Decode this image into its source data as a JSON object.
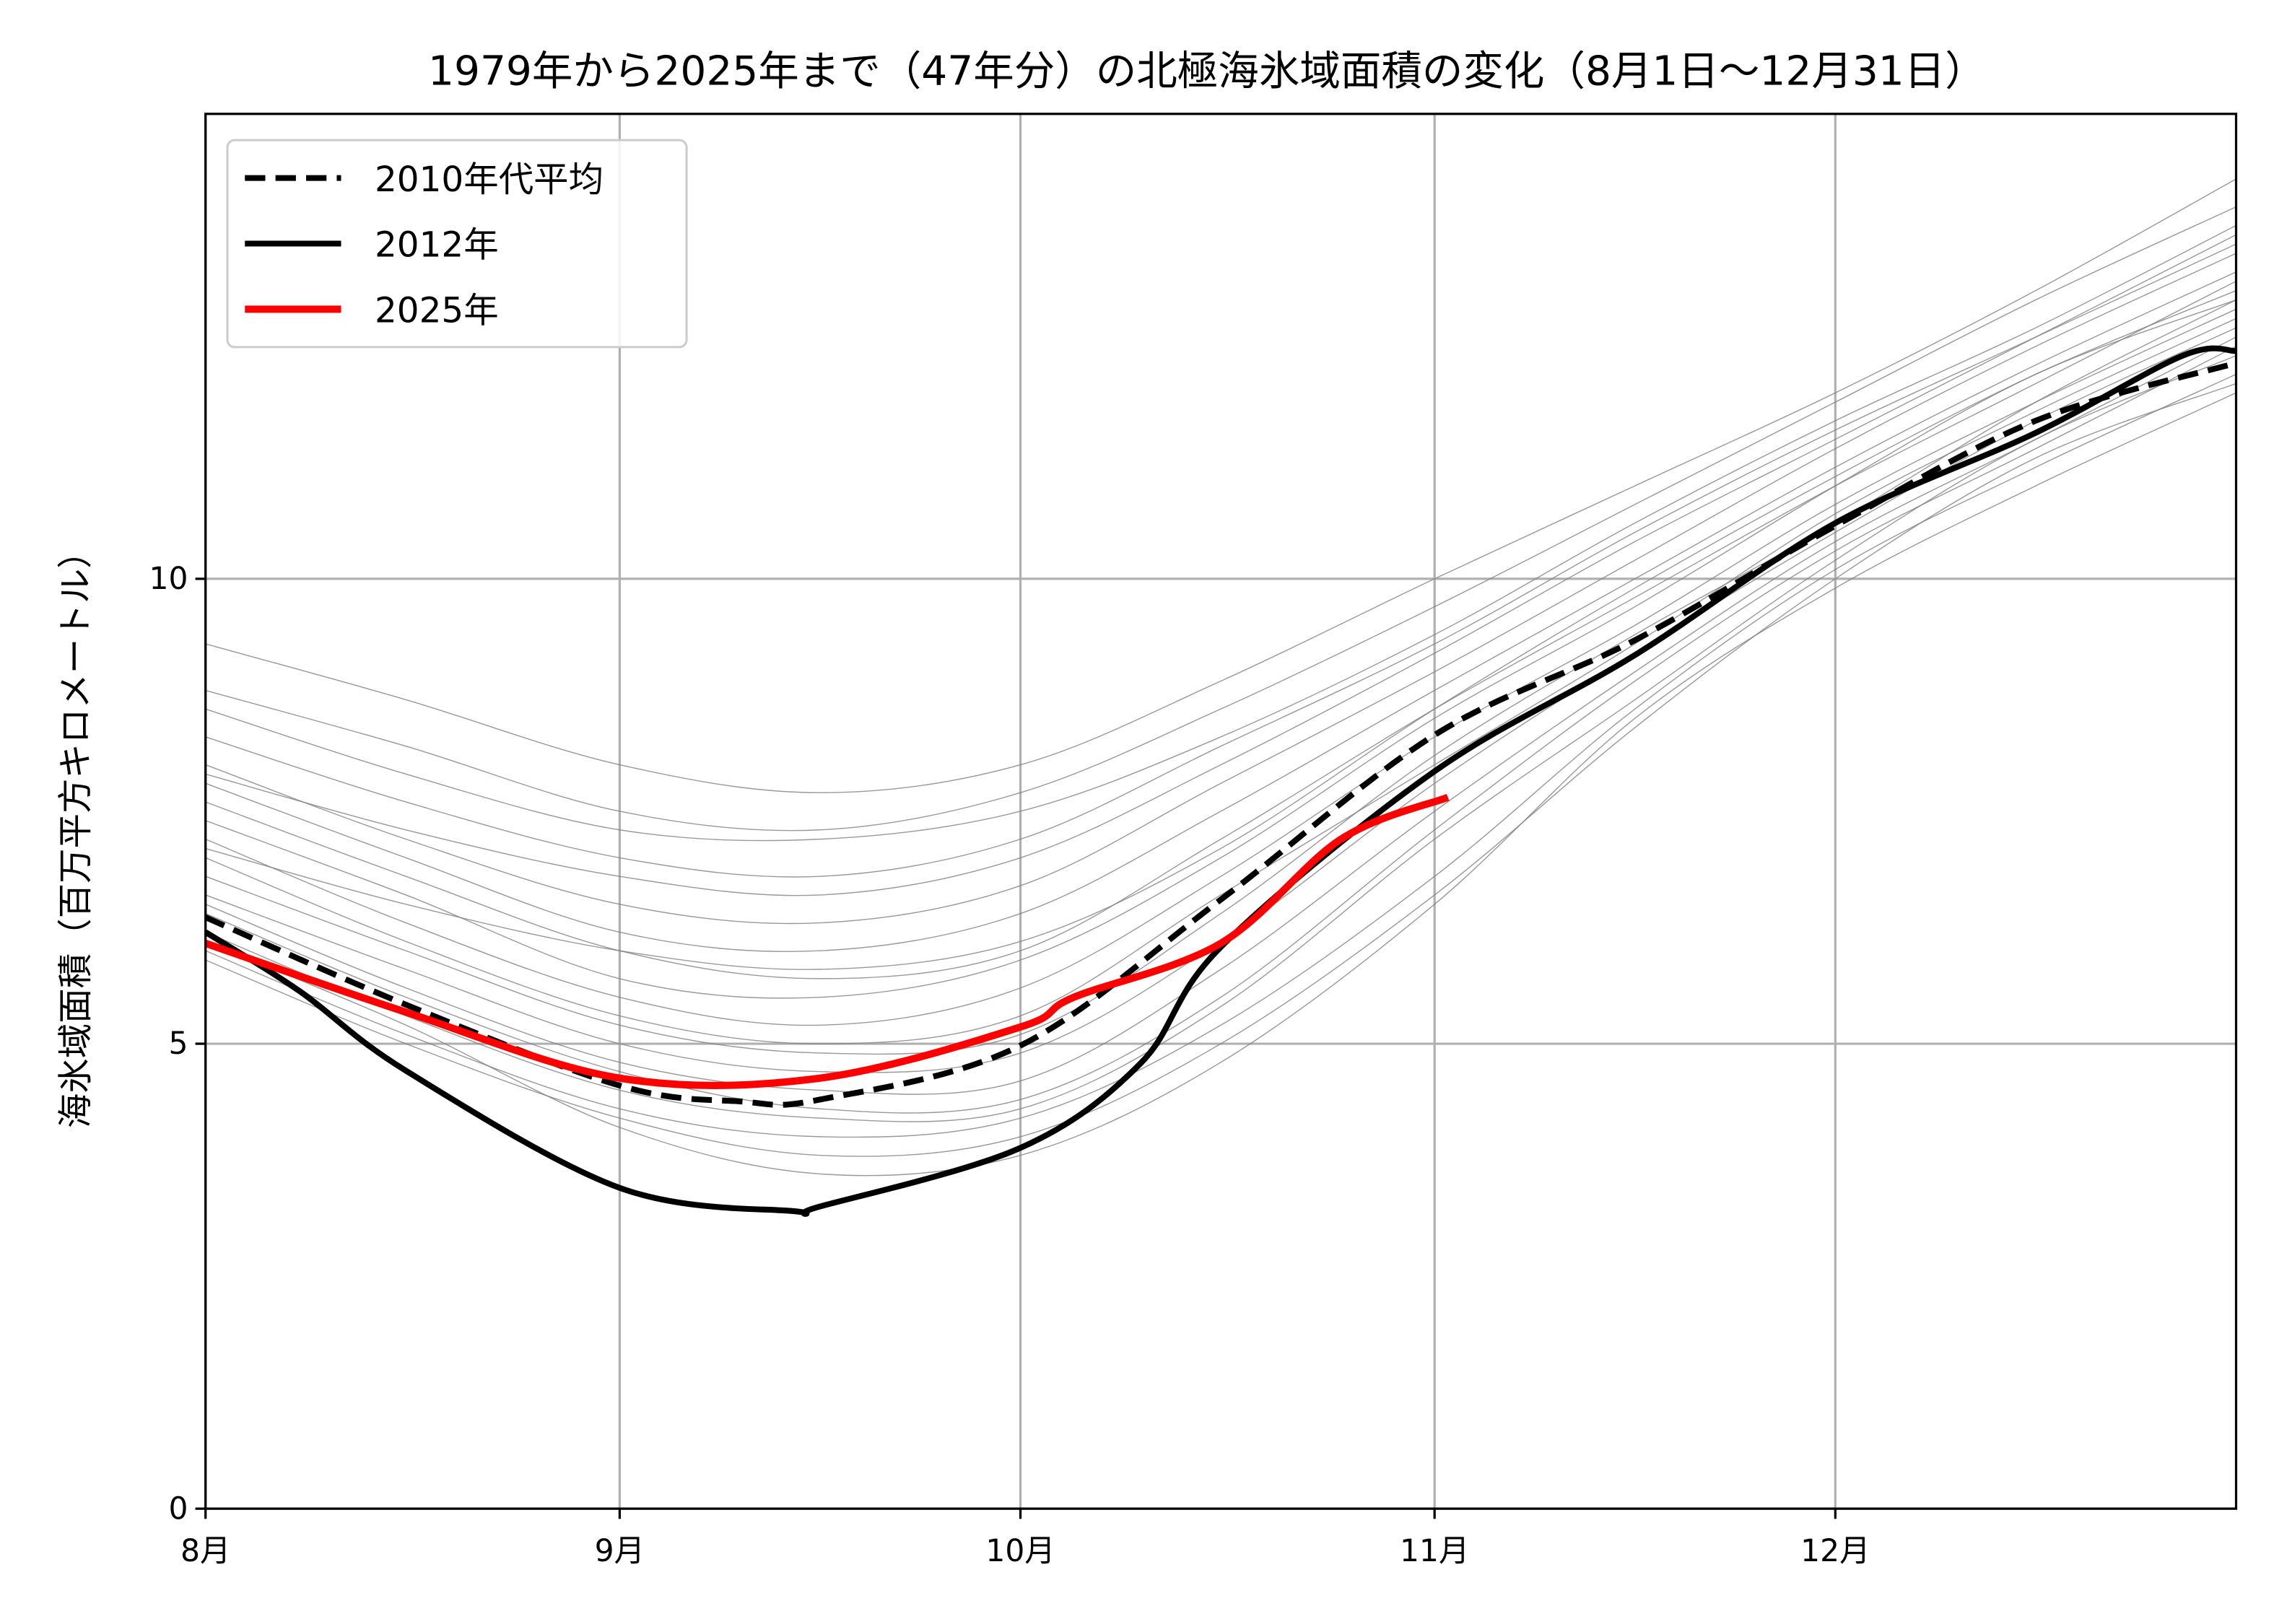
{
  "chart_data": {
    "type": "line",
    "title": "1979年から2025年まで（47年分）の北極海氷域面積の変化（8月1日〜12月31日）",
    "xlabel": "",
    "ylabel": "海氷域面積（百万平方キロメートル）",
    "x_axis": {
      "unit": "days since Aug 1",
      "xlim": [
        0,
        152
      ],
      "ticks": [
        0,
        31,
        61,
        92,
        122
      ],
      "tick_labels": [
        "8月",
        "9月",
        "10月",
        "11月",
        "12月"
      ]
    },
    "y_axis": {
      "ylim": [
        0,
        15
      ],
      "ticks": [
        0,
        5,
        10
      ],
      "tick_labels": [
        "0",
        "5",
        "10"
      ]
    },
    "grid": true,
    "legend": {
      "placement": "top-left",
      "entries": [
        "2010年代平均",
        "2012年",
        "2025年"
      ]
    },
    "sample_days": [
      0,
      15,
      31,
      46,
      61,
      76,
      92,
      107,
      122,
      137,
      152
    ],
    "background_years": {
      "color": "#808080",
      "lines": [
        [
          9.3,
          8.7,
          8.0,
          7.7,
          8.0,
          8.9,
          10.0,
          11.0,
          12.0,
          13.1,
          14.3
        ],
        [
          8.8,
          8.2,
          7.5,
          7.3,
          7.7,
          8.6,
          9.7,
          10.8,
          11.9,
          13.0,
          14.0
        ],
        [
          8.6,
          7.9,
          7.3,
          7.2,
          7.5,
          8.3,
          9.4,
          10.6,
          11.7,
          12.7,
          13.8
        ],
        [
          8.3,
          7.6,
          7.0,
          6.8,
          7.2,
          8.2,
          9.3,
          10.5,
          11.6,
          12.6,
          13.6
        ],
        [
          8.0,
          7.2,
          6.5,
          6.3,
          6.7,
          7.8,
          9.0,
          10.2,
          11.4,
          12.5,
          13.5
        ],
        [
          7.8,
          7.0,
          6.2,
          6.0,
          6.4,
          7.5,
          8.8,
          10.0,
          11.2,
          12.3,
          13.3
        ],
        [
          7.6,
          6.8,
          6.0,
          5.7,
          6.0,
          7.2,
          8.6,
          9.8,
          11.0,
          12.1,
          13.2
        ],
        [
          7.4,
          6.6,
          5.7,
          5.5,
          5.9,
          7.0,
          8.5,
          9.7,
          11.0,
          12.2,
          13.0
        ],
        [
          7.2,
          6.3,
          5.5,
          5.2,
          5.6,
          6.8,
          8.3,
          9.5,
          10.8,
          11.9,
          12.9
        ],
        [
          7.0,
          6.1,
          5.3,
          5.0,
          5.3,
          6.6,
          8.0,
          9.3,
          10.7,
          11.8,
          12.8
        ],
        [
          6.8,
          6.0,
          5.2,
          4.9,
          5.1,
          6.4,
          8.1,
          9.4,
          10.6,
          11.9,
          13.0
        ],
        [
          6.6,
          5.8,
          5.0,
          4.7,
          4.9,
          6.1,
          7.8,
          9.2,
          10.5,
          11.7,
          12.7
        ],
        [
          6.5,
          5.6,
          4.8,
          4.5,
          4.6,
          5.8,
          7.5,
          9.0,
          10.4,
          11.5,
          12.6
        ],
        [
          6.4,
          5.5,
          4.7,
          4.3,
          4.4,
          5.5,
          7.3,
          8.9,
          10.3,
          11.4,
          12.5
        ],
        [
          6.2,
          5.3,
          4.5,
          4.2,
          4.3,
          5.4,
          7.2,
          8.7,
          10.2,
          11.5,
          12.4
        ],
        [
          6.0,
          5.1,
          4.3,
          4.0,
          4.2,
          5.2,
          6.8,
          8.6,
          10.1,
          11.2,
          12.2
        ],
        [
          5.9,
          5.0,
          4.2,
          3.8,
          4.0,
          5.0,
          6.6,
          8.4,
          10.0,
          11.3,
          12.1
        ],
        [
          6.1,
          5.2,
          4.1,
          3.6,
          3.8,
          4.8,
          6.5,
          8.5,
          9.9,
          11.0,
          12.0
        ],
        [
          7.9,
          7.3,
          6.8,
          6.6,
          7.0,
          8.0,
          9.2,
          10.4,
          11.5,
          12.6,
          13.7
        ],
        [
          7.1,
          6.5,
          6.0,
          5.8,
          6.1,
          7.1,
          8.6,
          9.9,
          11.1,
          12.2,
          13.1
        ]
      ]
    },
    "series": [
      {
        "name": "2010年代平均",
        "color": "#000000",
        "style": "dashed",
        "x": [
          0,
          15,
          31,
          40,
          46,
          61,
          76,
          92,
          107,
          122,
          137,
          152
        ],
        "values": [
          6.36,
          5.42,
          4.55,
          4.38,
          4.4,
          4.98,
          6.55,
          8.32,
          9.34,
          10.57,
          11.7,
          12.32
        ]
      },
      {
        "name": "2012年",
        "color": "#000000",
        "style": "solid",
        "x": [
          0,
          7,
          15,
          31,
          44,
          46,
          61,
          70,
          76,
          92,
          107,
          122,
          137,
          148,
          152
        ],
        "values": [
          6.2,
          5.57,
          4.71,
          3.45,
          3.2,
          3.25,
          3.88,
          4.79,
          6.04,
          7.93,
          9.18,
          10.6,
          11.57,
          12.4,
          12.45
        ]
      },
      {
        "name": "2025年",
        "color": "#ff0000",
        "style": "solid",
        "x": [
          0,
          15,
          31,
          46,
          61,
          65,
          76,
          85,
          93
        ],
        "values": [
          6.08,
          5.34,
          4.63,
          4.63,
          5.18,
          5.5,
          6.08,
          7.2,
          7.65
        ]
      }
    ]
  }
}
